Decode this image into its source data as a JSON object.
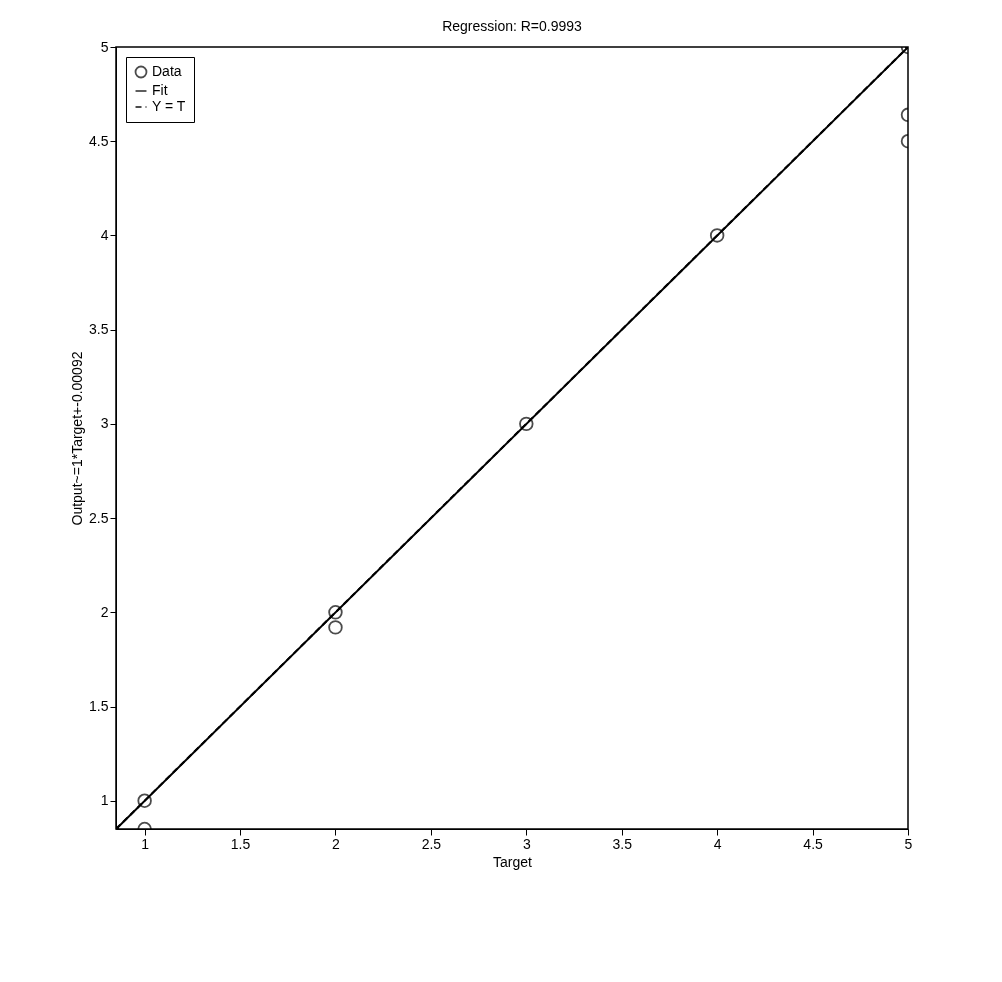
{
  "chart_data": {
    "type": "scatter",
    "title": "Regression: R=0.9993",
    "xlabel": "Target",
    "ylabel": "Output~=1*Target+-0.00092",
    "xlim": [
      0.85,
      5
    ],
    "ylim": [
      0.85,
      5
    ],
    "xticks": [
      1,
      1.5,
      2,
      2.5,
      3,
      3.5,
      4,
      4.5,
      5
    ],
    "yticks": [
      1,
      1.5,
      2,
      2.5,
      3,
      3.5,
      4,
      4.5,
      5
    ],
    "grid": false,
    "legend": "top left",
    "series": [
      {
        "name": "Data",
        "marker": "circle",
        "color": "#000000",
        "x": [
          1,
          1,
          2,
          2,
          3,
          4,
          5,
          5,
          5
        ],
        "values": [
          1,
          0.85,
          2,
          1.92,
          3,
          4,
          5,
          4.64,
          4.5
        ]
      },
      {
        "name": "Fit",
        "type": "line",
        "line_style": "solid",
        "color": "#000000",
        "x": [
          0.851,
          5
        ],
        "values": [
          0.85,
          4.999
        ]
      },
      {
        "name": "Y = T",
        "type": "line",
        "line_style": "dashed",
        "color": "#000000",
        "x": [
          0.85,
          5
        ],
        "values": [
          0.85,
          5
        ]
      }
    ]
  }
}
